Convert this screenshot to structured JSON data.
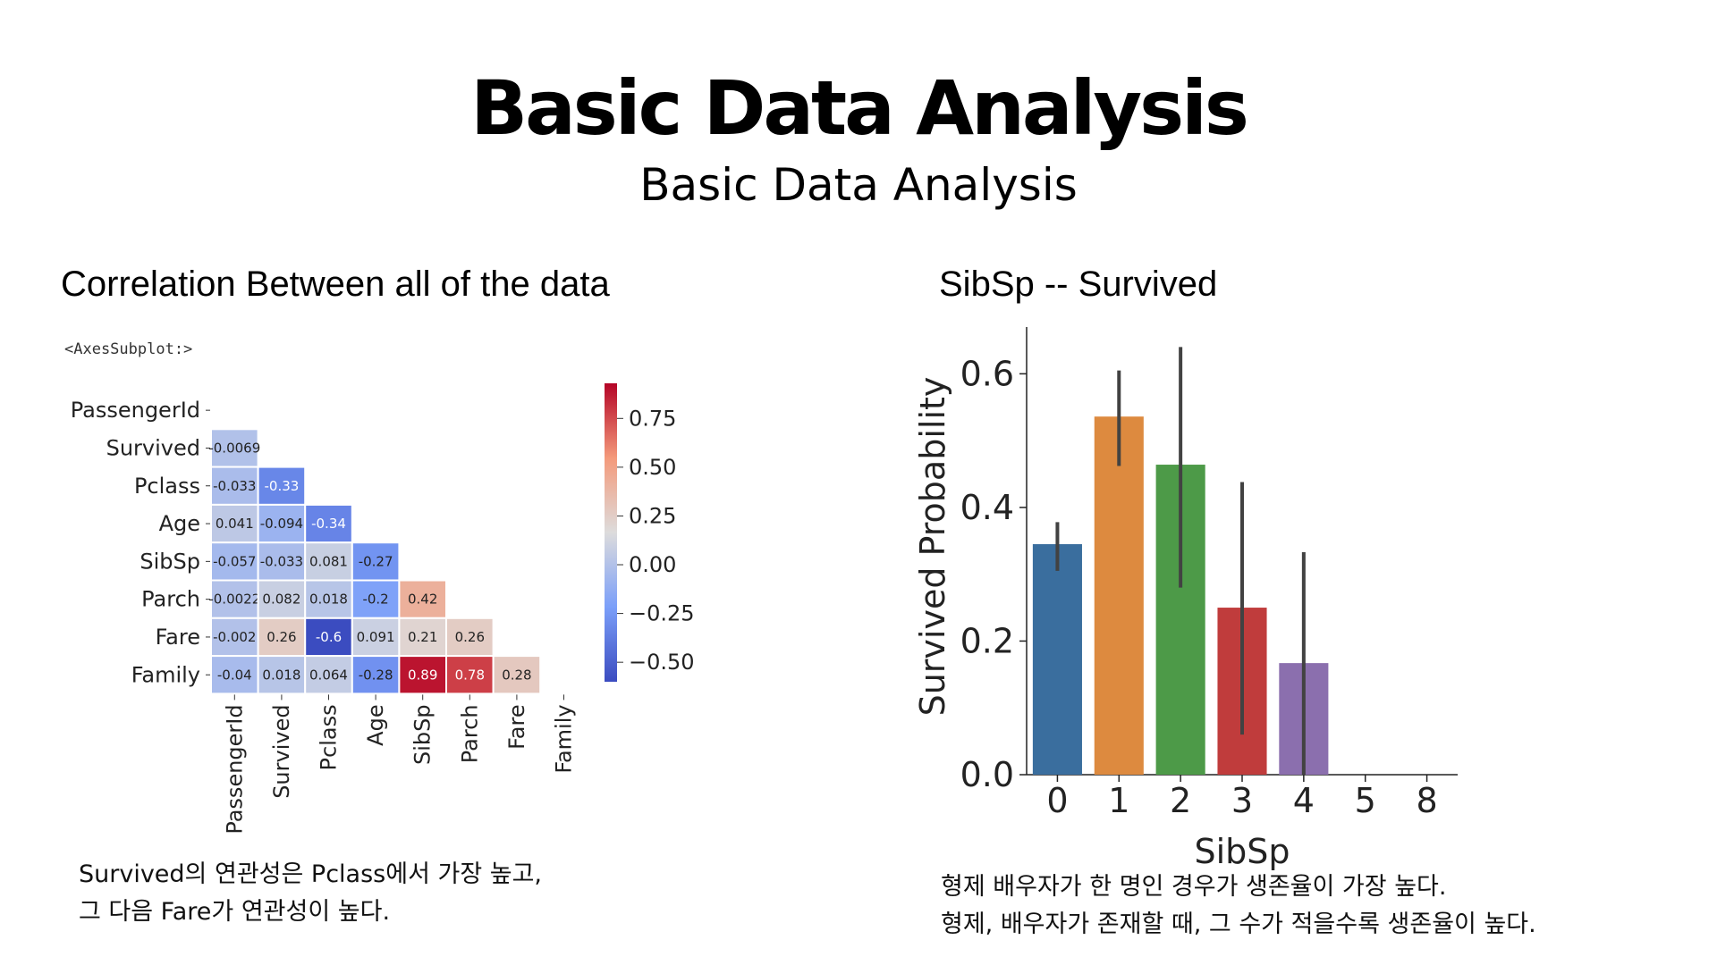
{
  "page": {
    "title": "Basic Data Analysis",
    "subtitle": "Basic Data Analysis"
  },
  "left": {
    "title": "Correlation Between all of the data",
    "axes_label": "<AxesSubplot:>",
    "caption": [
      "Survived의 연관성은 Pclass에서 가장 높고,",
      "그 다음 Fare가 연관성이 높다."
    ]
  },
  "right": {
    "title": "SibSp -- Survived",
    "caption": [
      "형제 배우자가 한 명인 경우가 생존율이 가장 높다.",
      "형제, 배우자가 존재할 때, 그 수가 적을수록 생존율이  높다."
    ]
  },
  "chart_data": [
    {
      "type": "heatmap",
      "rows": [
        "PassengerId",
        "Survived",
        "Pclass",
        "Age",
        "SibSp",
        "Parch",
        "Fare",
        "Family"
      ],
      "cols": [
        "PassengerId",
        "Survived",
        "Pclass",
        "Age",
        "SibSp",
        "Parch",
        "Fare",
        "Family"
      ],
      "mask": "upper triangle incl. diagonal",
      "cells": [
        [],
        [
          "-0.0069"
        ],
        [
          "-0.033",
          "-0.33"
        ],
        [
          "0.041",
          "-0.094",
          "-0.34"
        ],
        [
          "-0.057",
          "-0.033",
          "0.081",
          "-0.27"
        ],
        [
          "-0.0022",
          "0.082",
          "0.018",
          "-0.2",
          "0.42"
        ],
        [
          "-0.002",
          "0.26",
          "-0.6",
          "0.091",
          "0.21",
          "0.26"
        ],
        [
          "-0.04",
          "0.018",
          "0.064",
          "-0.28",
          "0.89",
          "0.78",
          "0.28"
        ]
      ],
      "colormap": "coolwarm",
      "colorbar": {
        "range": [
          -0.6,
          0.93
        ],
        "ticks": [
          "0.75",
          "0.50",
          "0.25",
          "0.00",
          "−0.25",
          "−0.50"
        ],
        "tick_values": [
          0.75,
          0.5,
          0.25,
          0.0,
          -0.25,
          -0.5
        ]
      },
      "grid": true
    },
    {
      "type": "bar",
      "categories": [
        "0",
        "1",
        "2",
        "3",
        "4",
        "5",
        "8"
      ],
      "values": [
        0.345,
        0.536,
        0.464,
        0.25,
        0.167,
        0.0,
        0.0
      ],
      "error_bars": [
        [
          0.305,
          0.378
        ],
        [
          0.462,
          0.605
        ],
        [
          0.28,
          0.64
        ],
        [
          0.06,
          0.438
        ],
        [
          0.0,
          0.333
        ],
        null,
        null
      ],
      "colors": [
        "#3a6e9e",
        "#dd8a3f",
        "#4d9a48",
        "#c03c3c",
        "#8b6fae",
        "#8c6d5c",
        "#d88ac2"
      ],
      "xlabel": "SibSp",
      "ylabel": "Survived Probability",
      "yticks": [
        "0.0",
        "0.2",
        "0.4",
        "0.6"
      ],
      "ylim": [
        0,
        0.67
      ]
    }
  ]
}
